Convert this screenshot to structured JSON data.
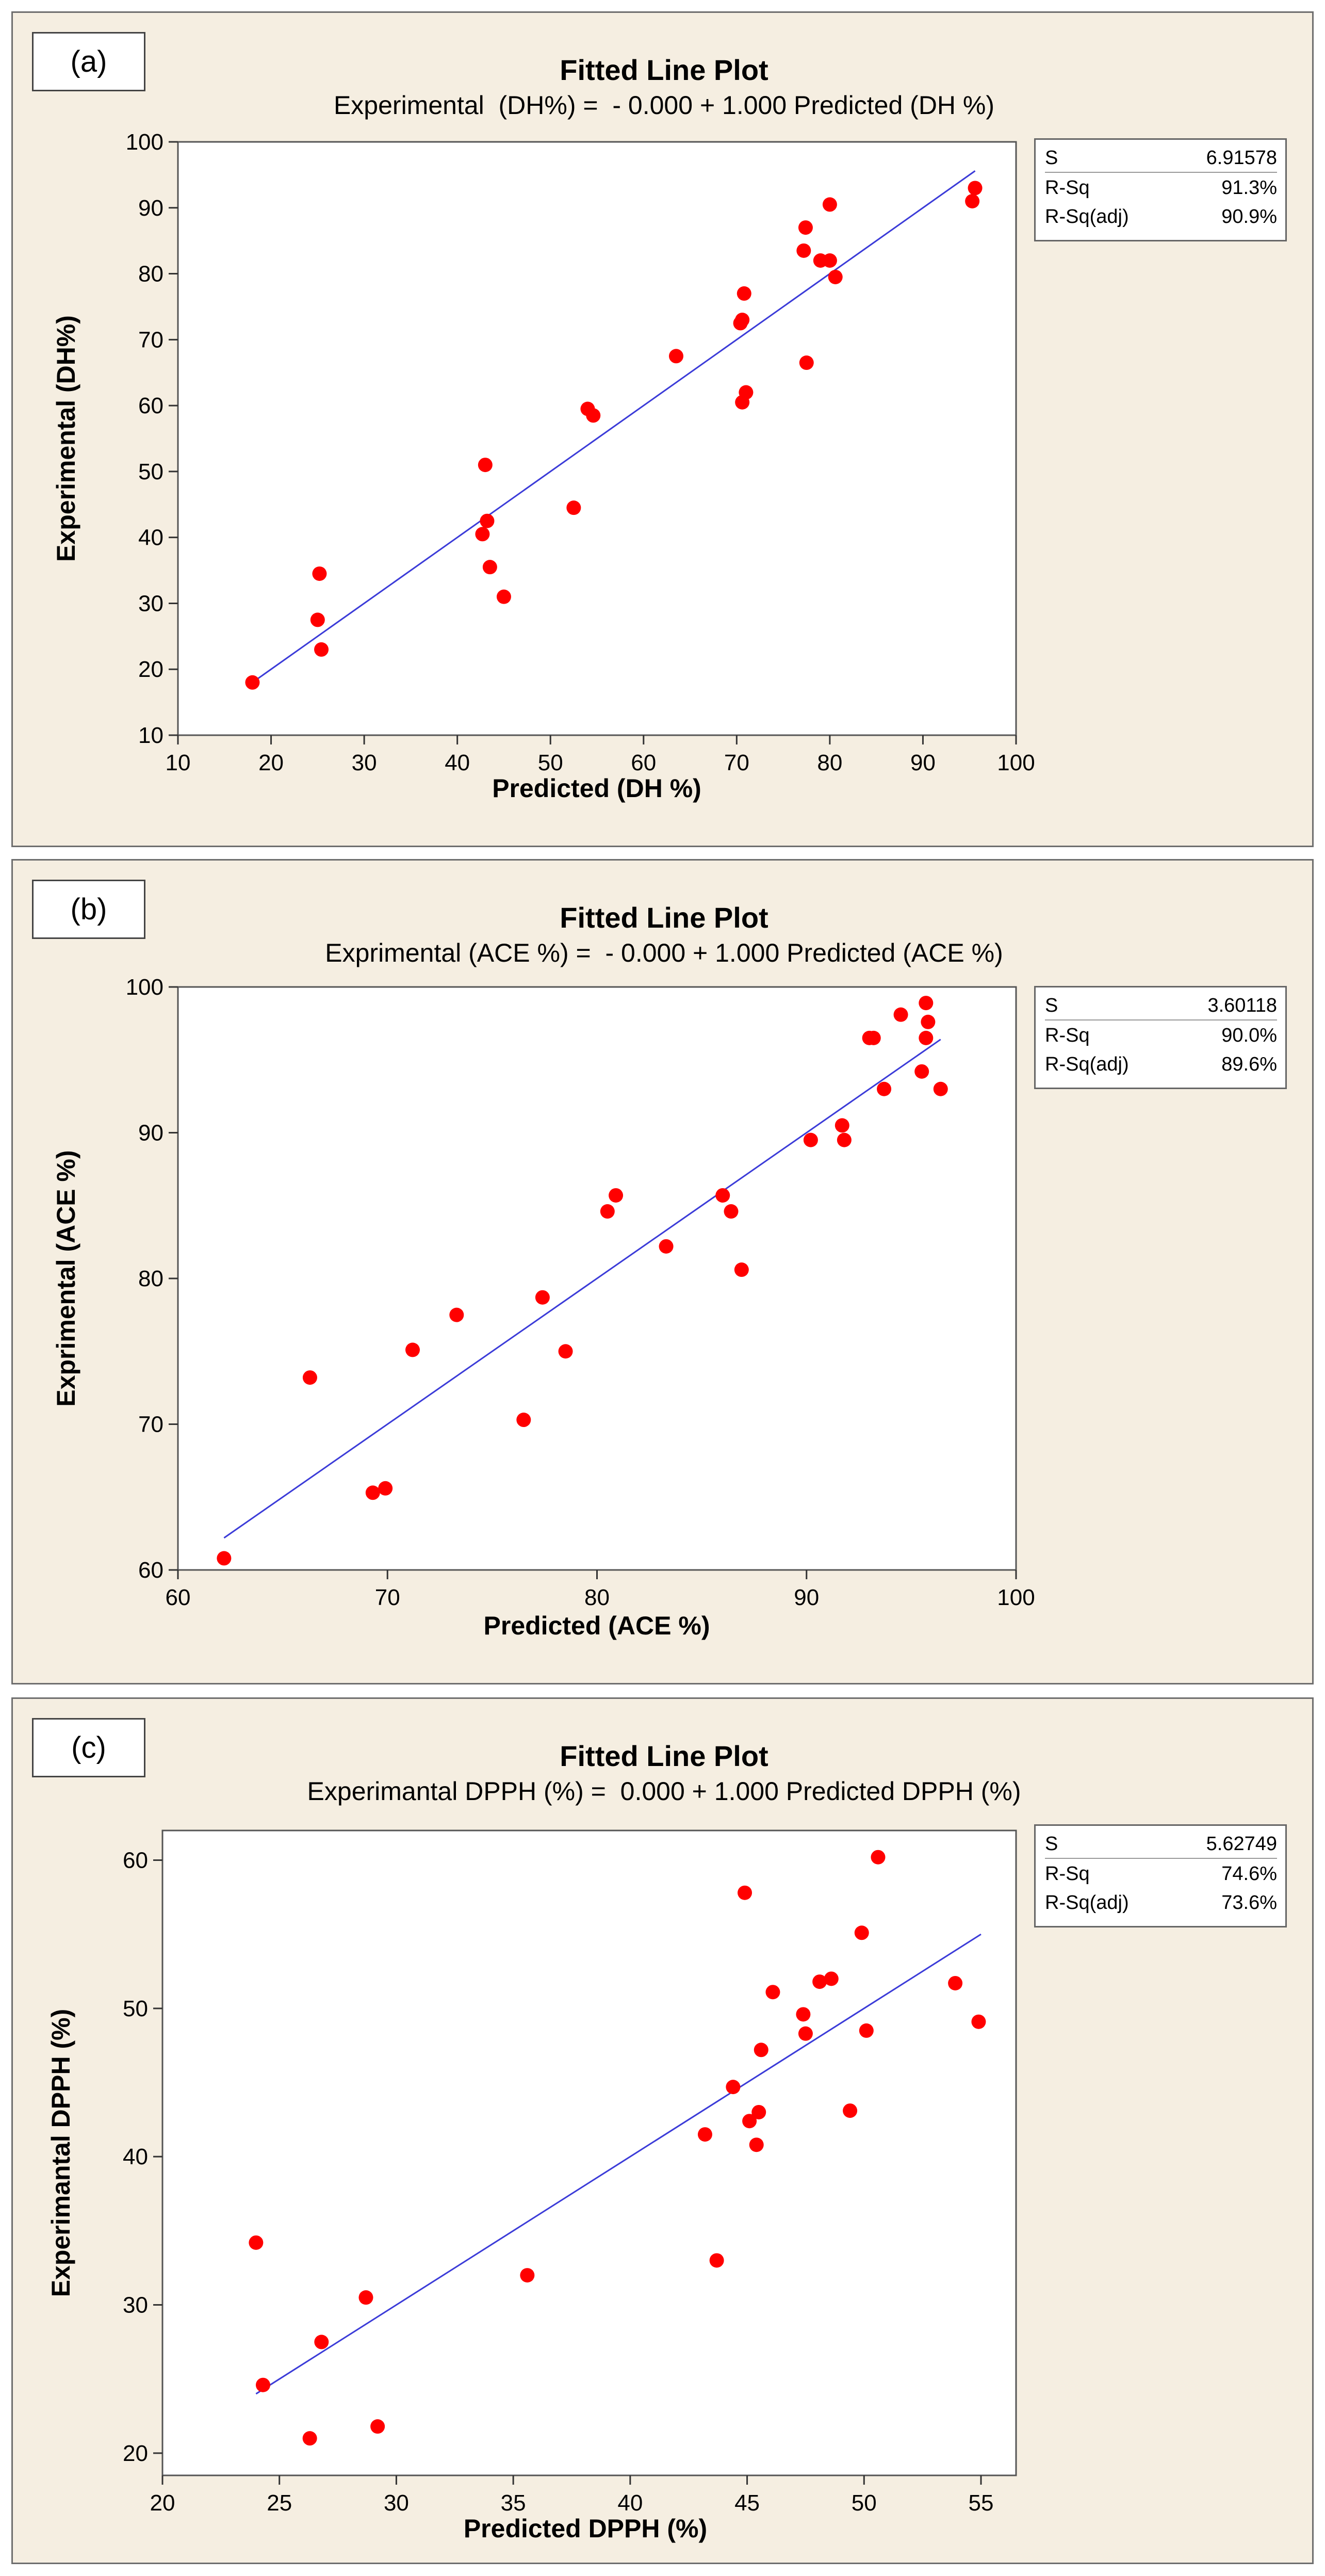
{
  "chart_data": [
    {
      "type": "scatter",
      "panel_label": "(a)",
      "title": "Fitted Line Plot",
      "equation": "Experimental  (DH%) =  - 0.000 + 1.000 Predicted (DH %)",
      "xlabel": "Predicted (DH %)",
      "ylabel": "Experimental  (DH%)",
      "xlim": [
        10,
        100
      ],
      "ylim": [
        10,
        100
      ],
      "xticks": [
        10,
        20,
        30,
        40,
        50,
        60,
        70,
        80,
        90,
        100
      ],
      "yticks": [
        10,
        20,
        30,
        40,
        50,
        60,
        70,
        80,
        90,
        100
      ],
      "x": [
        18,
        25,
        25.2,
        25.4,
        42.7,
        43,
        43.2,
        43.5,
        45,
        52.5,
        54,
        54.6,
        63.5,
        70.4,
        70.6,
        70.8,
        70.6,
        71,
        77.4,
        77.2,
        77.5,
        79,
        80,
        80,
        80.6,
        95.3,
        95.6
      ],
      "y": [
        18,
        27.5,
        34.5,
        23,
        40.5,
        51,
        42.5,
        35.5,
        31,
        44.5,
        59.5,
        58.5,
        67.5,
        72.5,
        73,
        77,
        60.5,
        62,
        87,
        83.5,
        66.5,
        82,
        90.5,
        82,
        79.5,
        91,
        93
      ],
      "fit_line": {
        "x": [
          18,
          95.6
        ],
        "y": [
          18,
          95.6
        ]
      },
      "stats": {
        "S": "6.91578",
        "R-Sq": "91.3%",
        "R-Sq(adj)": "90.9%"
      }
    },
    {
      "type": "scatter",
      "panel_label": "(b)",
      "title": "Fitted Line Plot",
      "equation": "Exprimental (ACE %) =  - 0.000 + 1.000 Predicted (ACE %)",
      "xlabel": "Predicted (ACE %)",
      "ylabel": "Exprimental (ACE %)",
      "xlim": [
        60,
        100
      ],
      "ylim": [
        60,
        100
      ],
      "xticks": [
        60,
        70,
        80,
        90,
        100
      ],
      "yticks": [
        60,
        70,
        80,
        90,
        100
      ],
      "x": [
        62.2,
        66.3,
        69.3,
        69.9,
        71.2,
        73.3,
        76.5,
        77.4,
        78.5,
        80.5,
        80.9,
        83.3,
        86,
        86.4,
        86.9,
        90.2,
        91.7,
        91.8,
        93,
        93.2,
        93.7,
        94.5,
        95.5,
        95.7,
        95.8,
        95.7,
        96.4
      ],
      "y": [
        60.8,
        73.2,
        65.3,
        65.6,
        75.1,
        77.5,
        70.3,
        78.7,
        75,
        84.6,
        85.7,
        82.2,
        85.7,
        84.6,
        80.6,
        89.5,
        90.5,
        89.5,
        96.5,
        96.5,
        93,
        98.1,
        94.2,
        98.9,
        97.6,
        96.5,
        93
      ],
      "fit_line": {
        "x": [
          62.2,
          96.4
        ],
        "y": [
          62.2,
          96.4
        ]
      },
      "stats": {
        "S": "3.60118",
        "R-Sq": "90.0%",
        "R-Sq(adj)": "89.6%"
      }
    },
    {
      "type": "scatter",
      "panel_label": "(c)",
      "title": "Fitted Line Plot",
      "equation": "Experimantal DPPH (%) =  0.000 + 1.000 Predicted DPPH (%)",
      "xlabel": "Predicted DPPH (%)",
      "ylabel": "Experimantal DPPH (%)",
      "xlim": [
        20,
        56.5
      ],
      "ylim": [
        18.5,
        62
      ],
      "xticks": [
        20,
        25,
        30,
        35,
        40,
        45,
        50,
        55
      ],
      "yticks": [
        20,
        30,
        40,
        50,
        60
      ],
      "x": [
        24,
        24.3,
        26.3,
        26.8,
        28.7,
        29.2,
        35.6,
        43.2,
        43.7,
        44.4,
        44.9,
        45.1,
        45.4,
        45.6,
        45.5,
        46.1,
        47.4,
        47.5,
        48.1,
        48.6,
        49.4,
        49.9,
        50.1,
        50.6,
        53.9,
        54.9
      ],
      "y": [
        34.2,
        24.6,
        21,
        27.5,
        30.5,
        21.8,
        32,
        41.5,
        33,
        44.7,
        57.8,
        42.4,
        40.8,
        47.2,
        43,
        51.1,
        49.6,
        48.3,
        51.8,
        52,
        43.1,
        55.1,
        48.5,
        60.2,
        51.7,
        49.1
      ],
      "fit_line": {
        "x": [
          24,
          55
        ],
        "y": [
          24,
          55
        ]
      },
      "stats": {
        "S": "5.62749",
        "R-Sq": "74.6%",
        "R-Sq(adj)": "73.6%"
      }
    }
  ],
  "colors": {
    "points": "#ff0000",
    "fit_line": "#3b3bd8",
    "panel_bg": "#f5eee1"
  }
}
